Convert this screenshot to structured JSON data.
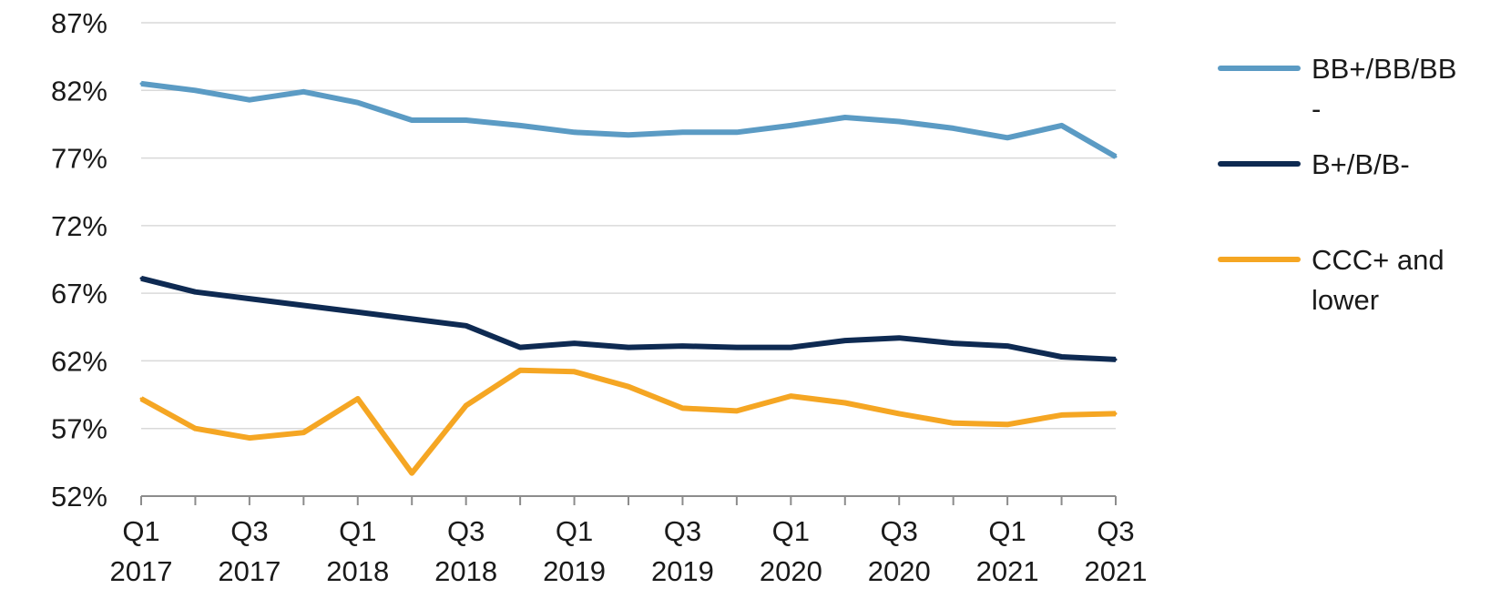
{
  "chart_data": {
    "type": "line",
    "title": "",
    "xlabel": "",
    "ylabel": "",
    "x": [
      "Q1 2017",
      "Q2 2017",
      "Q3 2017",
      "Q4 2017",
      "Q1 2018",
      "Q2 2018",
      "Q3 2018",
      "Q4 2018",
      "Q1 2019",
      "Q2 2019",
      "Q3 2019",
      "Q4 2019",
      "Q1 2020",
      "Q2 2020",
      "Q3 2020",
      "Q4 2020",
      "Q1 2021",
      "Q2 2021",
      "Q3 2021"
    ],
    "x_tick_labels": [
      {
        "index": 0,
        "line1": "Q1",
        "line2": "2017"
      },
      {
        "index": 2,
        "line1": "Q3",
        "line2": "2017"
      },
      {
        "index": 4,
        "line1": "Q1",
        "line2": "2018"
      },
      {
        "index": 6,
        "line1": "Q3",
        "line2": "2018"
      },
      {
        "index": 8,
        "line1": "Q1",
        "line2": "2019"
      },
      {
        "index": 10,
        "line1": "Q3",
        "line2": "2019"
      },
      {
        "index": 12,
        "line1": "Q1",
        "line2": "2020"
      },
      {
        "index": 14,
        "line1": "Q3",
        "line2": "2020"
      },
      {
        "index": 16,
        "line1": "Q1",
        "line2": "2021"
      },
      {
        "index": 18,
        "line1": "Q3",
        "line2": "2021"
      }
    ],
    "y_ticks": [
      52,
      57,
      62,
      67,
      72,
      77,
      82,
      87
    ],
    "y_tick_suffix": "%",
    "ylim": [
      52,
      87
    ],
    "grid": true,
    "legend_position": "right",
    "series": [
      {
        "name": "BB+/BB/BB-",
        "legend_lines": [
          "BB+/BB/BB",
          "-"
        ],
        "color": "#5b9bc4",
        "values": [
          82.5,
          82.0,
          81.3,
          81.9,
          81.1,
          79.8,
          79.8,
          79.4,
          78.9,
          78.7,
          78.9,
          78.9,
          79.4,
          80.0,
          79.7,
          79.2,
          78.5,
          79.4,
          77.1
        ]
      },
      {
        "name": "B+/B/B-",
        "legend_lines": [
          "B+/B/B-"
        ],
        "color": "#0e2a52",
        "values": [
          68.1,
          67.1,
          66.6,
          66.1,
          65.6,
          65.1,
          64.6,
          63.0,
          63.3,
          63.0,
          63.1,
          63.0,
          63.0,
          63.5,
          63.7,
          63.3,
          63.1,
          62.3,
          62.1
        ]
      },
      {
        "name": "CCC+ and lower",
        "legend_lines": [
          "CCC+ and",
          "lower"
        ],
        "color": "#f5a623",
        "values": [
          59.2,
          57.0,
          56.3,
          56.7,
          59.2,
          53.7,
          58.7,
          61.3,
          61.2,
          60.1,
          58.5,
          58.3,
          59.4,
          58.9,
          58.1,
          57.4,
          57.3,
          58.0,
          58.1
        ]
      }
    ]
  }
}
